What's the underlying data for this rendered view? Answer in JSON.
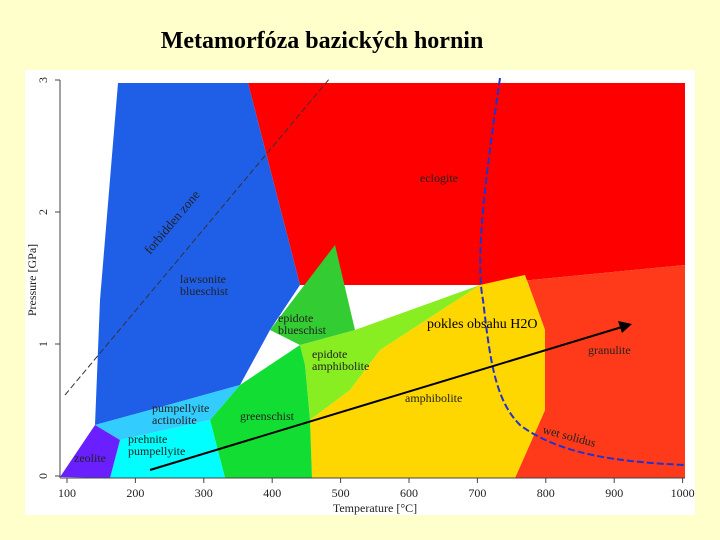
{
  "title": "Metamorfóza bazických hornin",
  "x_axis": {
    "label": "Temperature [°C]",
    "ticks": [
      100,
      200,
      300,
      400,
      500,
      600,
      700,
      800,
      900,
      1000
    ]
  },
  "y_axis": {
    "label": "Pressure [GPa]",
    "ticks": [
      0,
      1,
      2,
      3
    ]
  },
  "regions": [
    {
      "lines": [
        "eclogite"
      ]
    },
    {
      "lines": [
        "lawsonite",
        "blueschist"
      ]
    },
    {
      "lines": [
        "epidote",
        "blueschist"
      ]
    },
    {
      "lines": [
        "epidote",
        "amphibolite"
      ]
    },
    {
      "lines": [
        "amphibolite"
      ]
    },
    {
      "lines": [
        "granulite"
      ]
    },
    {
      "lines": [
        "greenschist"
      ]
    },
    {
      "lines": [
        "pumpellyite",
        "actinolite"
      ]
    },
    {
      "lines": [
        "prehnite",
        "pumpellyite"
      ]
    },
    {
      "lines": [
        "zeolite"
      ]
    }
  ],
  "annotations": {
    "forbidden_zone": "forbidden zone",
    "wet_solidus": "wet solidus",
    "arrow": "pokles obsahu H2O"
  }
}
